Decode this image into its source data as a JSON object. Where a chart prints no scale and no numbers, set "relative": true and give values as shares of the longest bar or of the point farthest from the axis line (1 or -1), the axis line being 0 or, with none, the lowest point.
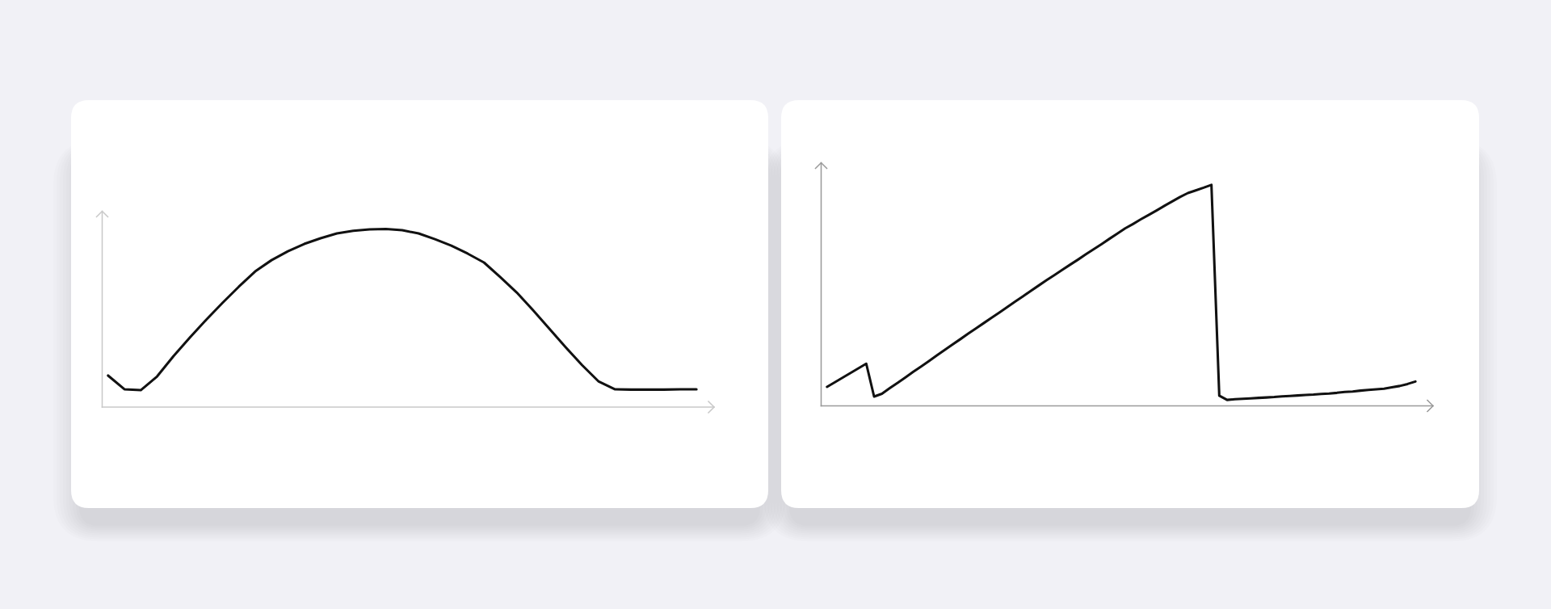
{
  "chart_data": [
    {
      "type": "line",
      "relative": true,
      "categories": [
        null,
        null,
        null,
        null,
        null,
        null,
        null,
        null,
        null,
        null,
        null,
        null,
        null,
        null,
        null,
        null,
        null,
        null,
        null,
        null,
        null,
        null,
        null,
        null,
        null,
        null,
        null,
        null,
        null,
        null,
        null,
        null,
        null,
        null,
        null,
        null,
        null
      ],
      "series": [
        {
          "color": "#111111",
          "values": [
            0.177,
            0.1,
            0.095,
            0.172,
            0.286,
            0.39,
            0.49,
            0.585,
            0.676,
            0.762,
            0.825,
            0.875,
            0.916,
            0.948,
            0.975,
            0.99,
            0.998,
            1.0,
            0.993,
            0.975,
            0.943,
            0.907,
            0.862,
            0.812,
            0.73,
            0.644,
            0.544,
            0.44,
            0.336,
            0.236,
            0.145,
            0.1,
            0.098,
            0.098,
            0.098,
            0.1,
            0.1
          ]
        }
      ]
    },
    {
      "type": "line",
      "relative": true,
      "categories": [
        null,
        null,
        null,
        null,
        null,
        null,
        null,
        null,
        null,
        null,
        null,
        null,
        null,
        null,
        null,
        null,
        null,
        null,
        null,
        null,
        null,
        null,
        null,
        null,
        null,
        null,
        null,
        null,
        null,
        null,
        null,
        null,
        null,
        null,
        null,
        null,
        null,
        null,
        null,
        null,
        null,
        null,
        null,
        null,
        null,
        null,
        null,
        null,
        null,
        null,
        null,
        null,
        null,
        null,
        null,
        null,
        null,
        null,
        null,
        null,
        null,
        null,
        null,
        null,
        null,
        null,
        null,
        null,
        null,
        null,
        null,
        null,
        null,
        null,
        null,
        null
      ],
      "series": [
        {
          "color": "#111111",
          "values": [
            0.086,
            0.107,
            0.128,
            0.149,
            0.17,
            0.191,
            0.042,
            0.055,
            0.08,
            0.104,
            0.129,
            0.154,
            0.178,
            0.203,
            0.228,
            0.253,
            0.278,
            0.302,
            0.327,
            0.351,
            0.375,
            0.399,
            0.423,
            0.448,
            0.472,
            0.496,
            0.521,
            0.545,
            0.569,
            0.592,
            0.616,
            0.639,
            0.662,
            0.686,
            0.709,
            0.732,
            0.756,
            0.779,
            0.803,
            0.823,
            0.844,
            0.864,
            0.884,
            0.905,
            0.925,
            0.945,
            0.963,
            0.975,
            0.987,
            1.0,
            0.046,
            0.027,
            0.03,
            0.032,
            0.034,
            0.036,
            0.038,
            0.04,
            0.043,
            0.045,
            0.047,
            0.049,
            0.051,
            0.054,
            0.056,
            0.059,
            0.063,
            0.065,
            0.069,
            0.072,
            0.075,
            0.078,
            0.084,
            0.09,
            0.099,
            0.11
          ]
        }
      ]
    }
  ]
}
